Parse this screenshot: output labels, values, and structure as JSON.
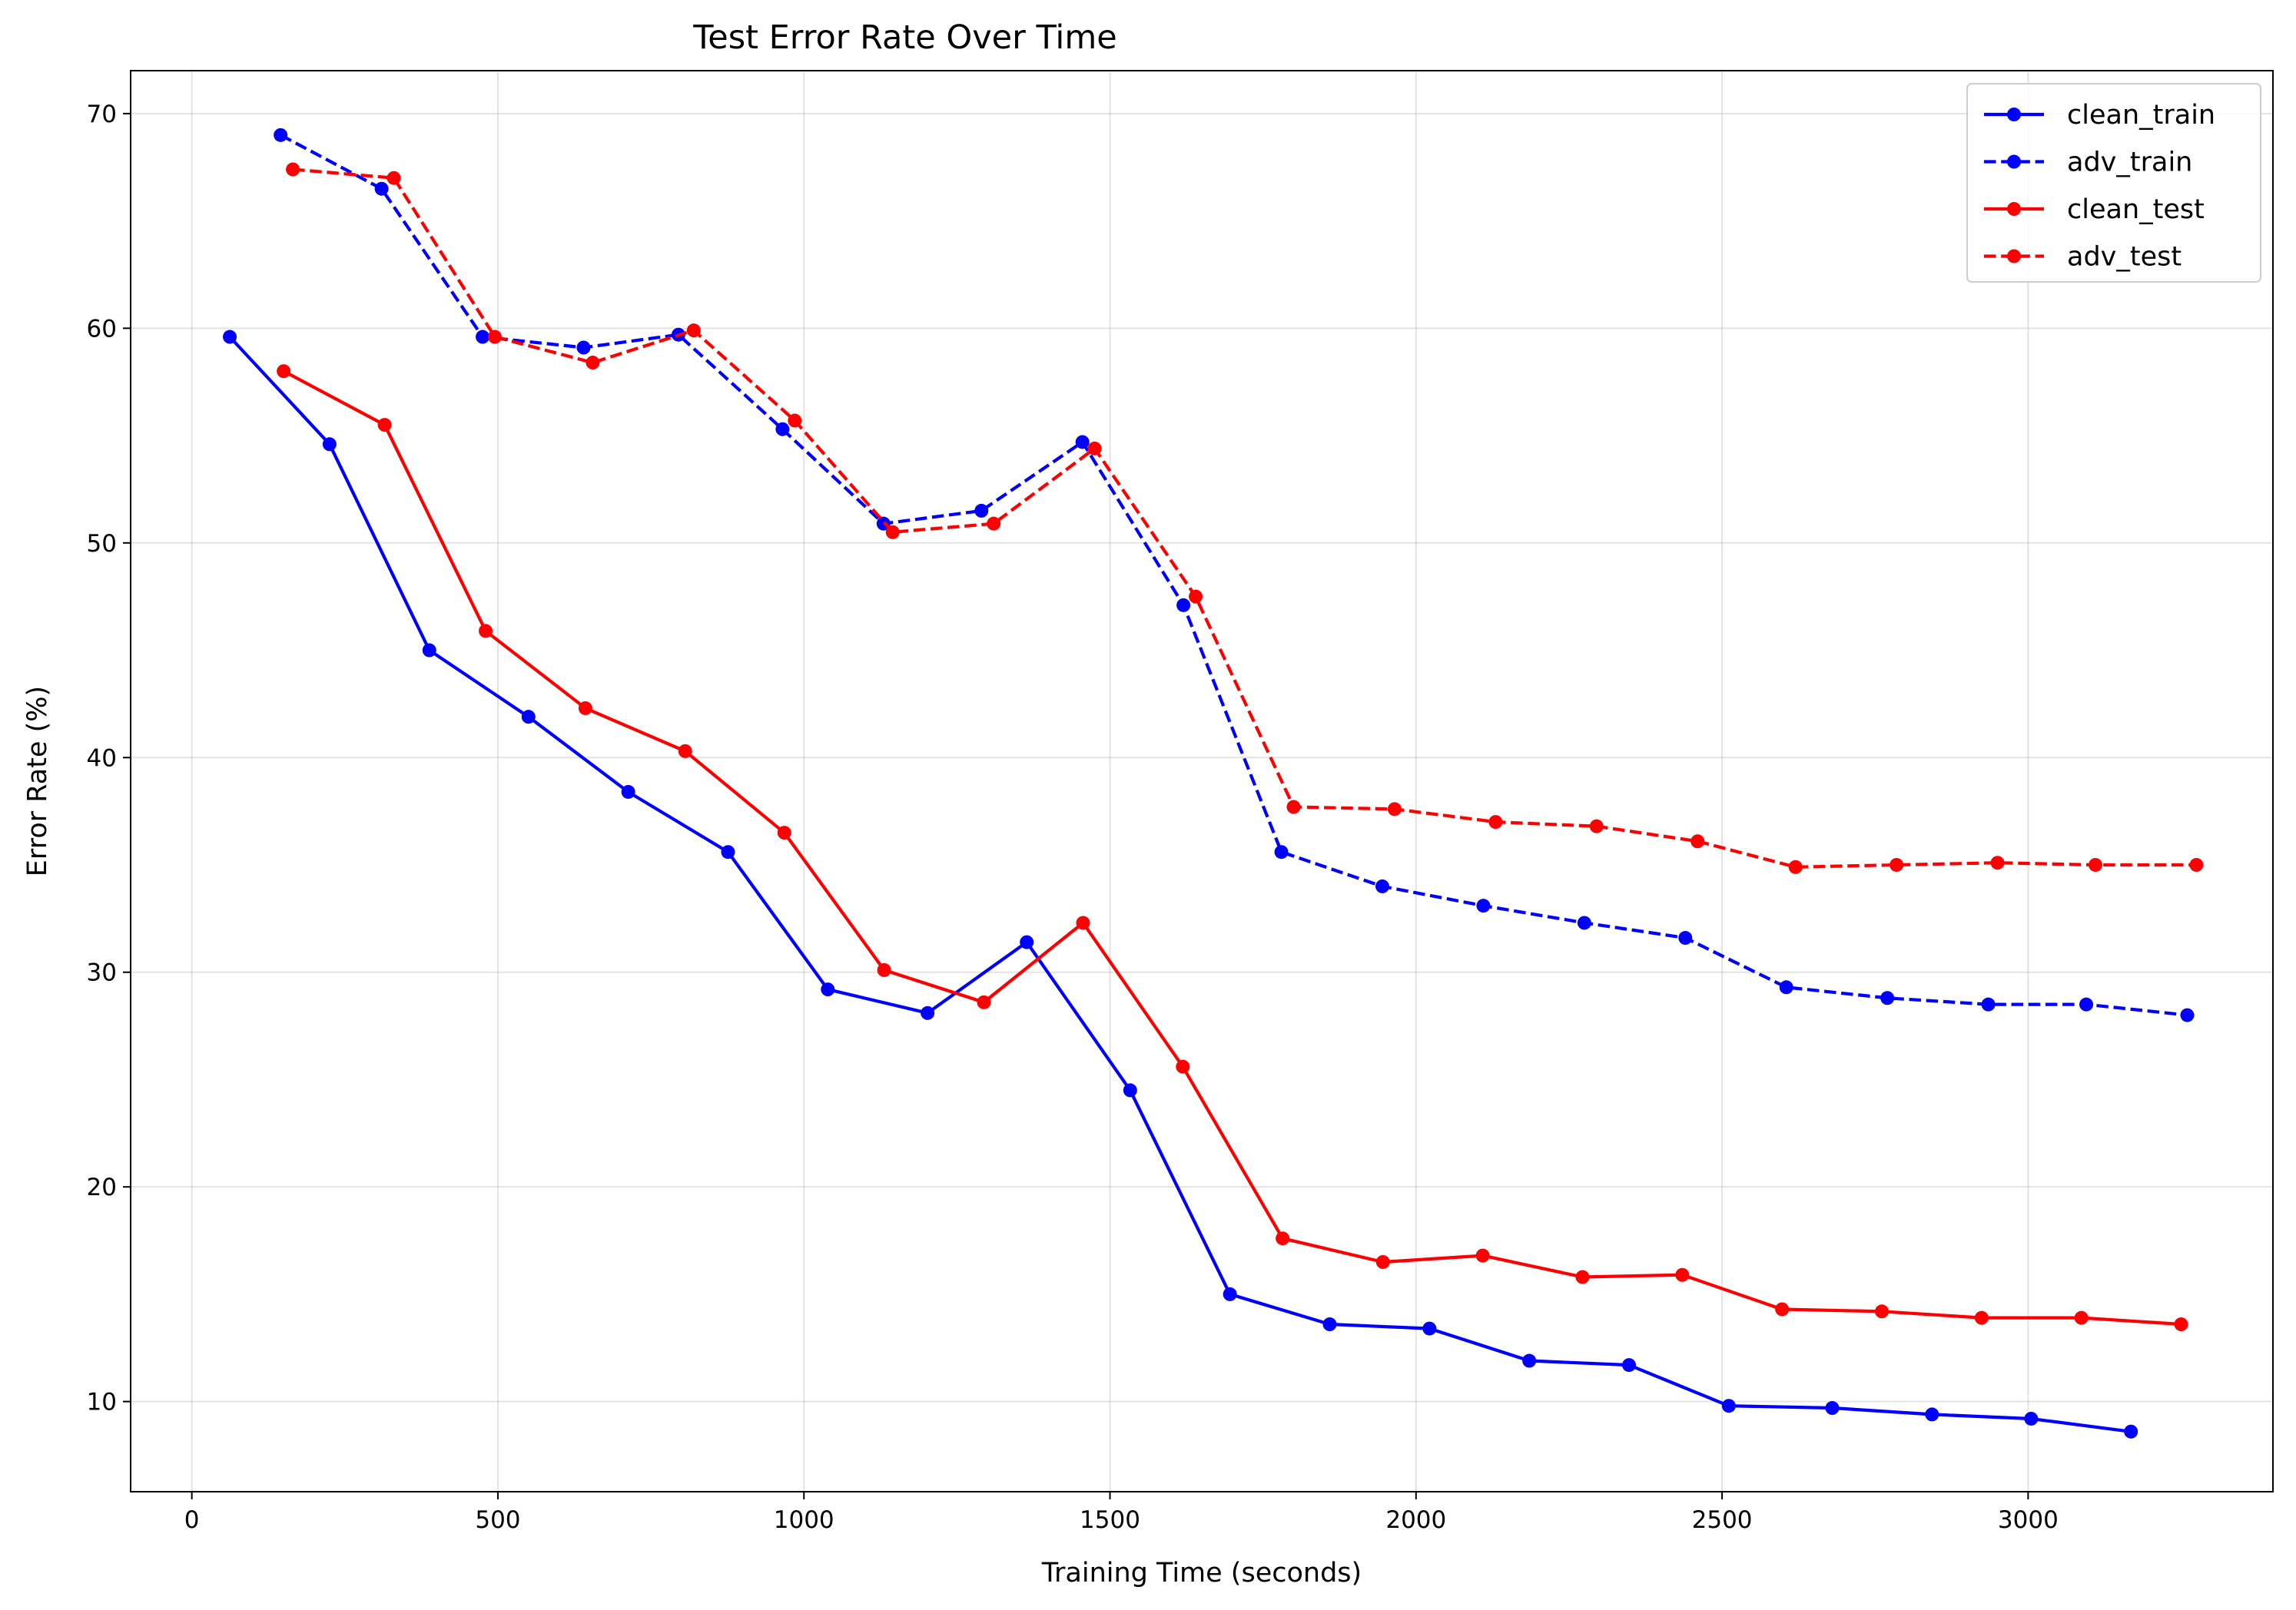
{
  "chart_data": {
    "type": "line",
    "title": "Test Error Rate Over Time",
    "xlabel": "Training Time (seconds)",
    "ylabel": "Error Rate (%)",
    "xlim": [
      -100,
      3400
    ],
    "ylim": [
      5.8,
      72
    ],
    "xticks": [
      0,
      500,
      1000,
      1500,
      2000,
      2500,
      3000
    ],
    "yticks": [
      10,
      20,
      30,
      40,
      50,
      60,
      70
    ],
    "grid": true,
    "legend_position": "top-right",
    "series": [
      {
        "name": "clean_train",
        "color": "#0000ff",
        "linestyle": "solid",
        "x": [
          62,
          225,
          388,
          550,
          713,
          876,
          1039,
          1202,
          1364,
          1533,
          1696,
          1859,
          2022,
          2185,
          2348,
          2511,
          2680,
          2843,
          3005,
          3168
        ],
        "y": [
          59.6,
          54.6,
          45.0,
          41.9,
          38.4,
          35.6,
          29.2,
          28.1,
          31.4,
          24.5,
          15.0,
          13.6,
          13.4,
          11.9,
          11.7,
          9.8,
          9.7,
          9.4,
          9.2,
          8.6
        ]
      },
      {
        "name": "adv_train",
        "color": "#0000ff",
        "linestyle": "dashed",
        "x": [
          145,
          310,
          475,
          640,
          795,
          965,
          1130,
          1290,
          1455,
          1620,
          1780,
          1945,
          2110,
          2275,
          2440,
          2605,
          2770,
          2935,
          3095,
          3260
        ],
        "y": [
          69.0,
          66.5,
          59.6,
          59.1,
          59.7,
          55.3,
          50.9,
          51.5,
          54.7,
          47.1,
          35.6,
          34.0,
          33.1,
          32.3,
          31.6,
          29.3,
          28.8,
          28.5,
          28.5,
          28.0
        ]
      },
      {
        "name": "clean_test",
        "color": "#ff0000",
        "linestyle": "solid",
        "x": [
          150,
          315,
          480,
          643,
          806,
          968,
          1131,
          1294,
          1456,
          1619,
          1782,
          1946,
          2109,
          2272,
          2435,
          2598,
          2761,
          2924,
          3087,
          3250
        ],
        "y": [
          58.0,
          55.5,
          45.9,
          42.3,
          40.3,
          36.5,
          30.1,
          28.6,
          32.3,
          25.6,
          17.6,
          16.5,
          16.8,
          15.8,
          15.9,
          14.3,
          14.2,
          13.9,
          13.9,
          13.6
        ]
      },
      {
        "name": "adv_test",
        "color": "#ff0000",
        "linestyle": "dashed",
        "x": [
          165,
          330,
          495,
          655,
          820,
          985,
          1145,
          1310,
          1475,
          1640,
          1800,
          1965,
          2130,
          2295,
          2460,
          2620,
          2785,
          2950,
          3110,
          3275
        ],
        "y": [
          67.4,
          67.0,
          59.6,
          58.4,
          59.9,
          55.7,
          50.5,
          50.9,
          54.4,
          47.5,
          37.7,
          37.6,
          37.0,
          36.8,
          36.1,
          34.9,
          35.0,
          35.1,
          35.0,
          35.0
        ]
      }
    ]
  }
}
